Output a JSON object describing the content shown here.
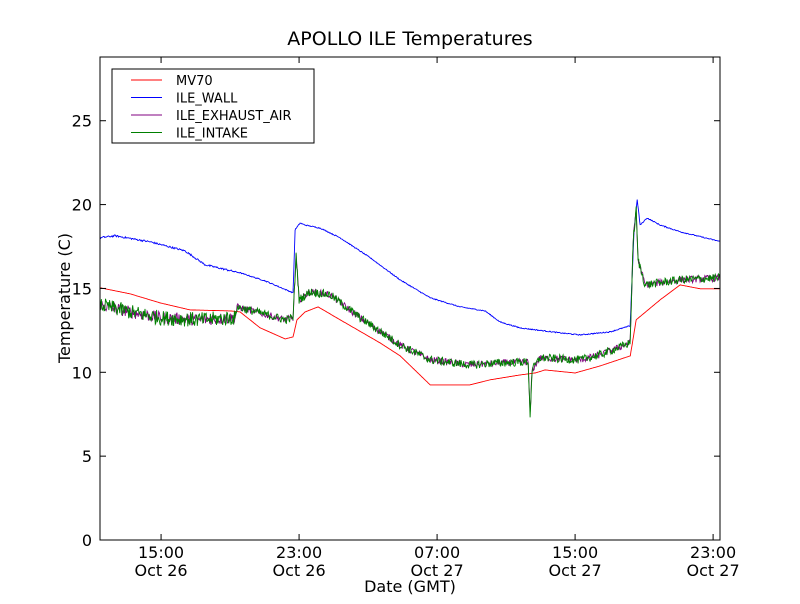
{
  "chart_data": {
    "type": "line",
    "title": "APOLLO ILE Temperatures",
    "xlabel": "Date (GMT)",
    "ylabel": "Temperature (C)",
    "x_units": "hours since Oct 26 00:00 GMT",
    "xlim": [
      11.46,
      47.4
    ],
    "ylim": [
      0,
      28.8
    ],
    "yticks": [
      0,
      5,
      10,
      15,
      20,
      25
    ],
    "xticks": [
      {
        "value": 15,
        "line1": "15:00",
        "line2": "Oct 26"
      },
      {
        "value": 23,
        "line1": "23:00",
        "line2": "Oct 26"
      },
      {
        "value": 31,
        "line1": "07:00",
        "line2": "Oct 27"
      },
      {
        "value": 39,
        "line1": "15:00",
        "line2": "Oct 27"
      },
      {
        "value": 47,
        "line1": "23:00",
        "line2": "Oct 27"
      }
    ],
    "grid": false,
    "legend_position": "top-left",
    "series": [
      {
        "name": "MV70",
        "color": "#ff0000",
        "noise": 0,
        "x": [
          11.46,
          13.2,
          14.94,
          16.68,
          19.0,
          19.58,
          20.74,
          22.19,
          22.65,
          22.88,
          23.35,
          24.1,
          25.38,
          27.7,
          28.86,
          30.6,
          32.9,
          34.07,
          35.8,
          36.68,
          37.26,
          39.0,
          40.45,
          42.2,
          42.54,
          43.93,
          45.09,
          46.25,
          47.4
        ],
        "y": [
          15.04,
          14.68,
          14.14,
          13.72,
          13.66,
          13.6,
          12.65,
          11.99,
          12.11,
          13.13,
          13.6,
          13.9,
          13.13,
          11.75,
          10.98,
          9.25,
          9.25,
          9.55,
          9.84,
          9.96,
          10.14,
          9.96,
          10.38,
          10.98,
          13.13,
          14.32,
          15.21,
          14.98,
          14.98
        ]
      },
      {
        "name": "ILE_WALL",
        "color": "#0000ff",
        "noise": 0.03,
        "x": [
          11.46,
          12.33,
          14.36,
          16.39,
          17.55,
          19.58,
          21.03,
          22.65,
          22.77,
          23.06,
          23.35,
          24.22,
          25.38,
          27.12,
          28.86,
          30.6,
          32.33,
          33.78,
          34.65,
          35.8,
          38.13,
          39.29,
          41.03,
          42.19,
          42.42,
          42.6,
          42.77,
          43.17,
          43.93,
          45.09,
          47.4
        ],
        "y": [
          18.02,
          18.14,
          17.78,
          17.24,
          16.41,
          15.93,
          15.45,
          14.74,
          18.5,
          18.9,
          18.78,
          18.6,
          18.02,
          16.83,
          15.51,
          14.44,
          13.9,
          13.66,
          13.0,
          12.65,
          12.35,
          12.23,
          12.41,
          12.77,
          18.5,
          20.29,
          18.78,
          19.2,
          18.78,
          18.38,
          17.8
        ]
      },
      {
        "name": "ILE_EXHAUST_AIR",
        "color": "#800080",
        "noise": 0.2,
        "x": [
          11.46,
          13.2,
          14.94,
          17.26,
          19.29,
          19.41,
          20.74,
          22.19,
          22.65,
          22.83,
          23.0,
          23.64,
          24.8,
          26.54,
          28.86,
          30.6,
          32.9,
          34.65,
          36.28,
          36.39,
          36.51,
          36.97,
          39.29,
          40.45,
          42.19,
          42.37,
          42.54,
          42.65,
          43.06,
          44.22,
          45.09,
          47.4
        ],
        "y": [
          14.02,
          13.6,
          13.25,
          13.13,
          13.25,
          13.9,
          13.54,
          13.13,
          13.25,
          17.0,
          14.32,
          14.8,
          14.62,
          13.25,
          11.63,
          10.74,
          10.44,
          10.56,
          10.62,
          7.46,
          10.14,
          10.86,
          10.74,
          11.04,
          11.75,
          17.9,
          19.69,
          16.71,
          15.21,
          15.39,
          15.51,
          15.63
        ]
      },
      {
        "name": "ILE_INTAKE",
        "color": "#008000",
        "noise": 0.25,
        "x": [
          11.46,
          13.2,
          14.94,
          17.26,
          19.29,
          19.41,
          20.74,
          22.19,
          22.65,
          22.83,
          23.0,
          23.64,
          24.8,
          26.54,
          28.86,
          30.6,
          32.9,
          34.65,
          36.28,
          36.39,
          36.51,
          36.97,
          39.29,
          40.45,
          42.19,
          42.37,
          42.54,
          42.65,
          43.06,
          44.22,
          45.09,
          47.4
        ],
        "y": [
          14.02,
          13.6,
          13.25,
          13.13,
          13.25,
          13.9,
          13.54,
          13.13,
          13.25,
          17.0,
          14.32,
          14.8,
          14.62,
          13.25,
          11.63,
          10.74,
          10.44,
          10.56,
          10.62,
          7.46,
          10.14,
          10.86,
          10.74,
          11.04,
          11.75,
          17.9,
          19.69,
          16.71,
          15.21,
          15.39,
          15.51,
          15.63
        ]
      }
    ]
  }
}
